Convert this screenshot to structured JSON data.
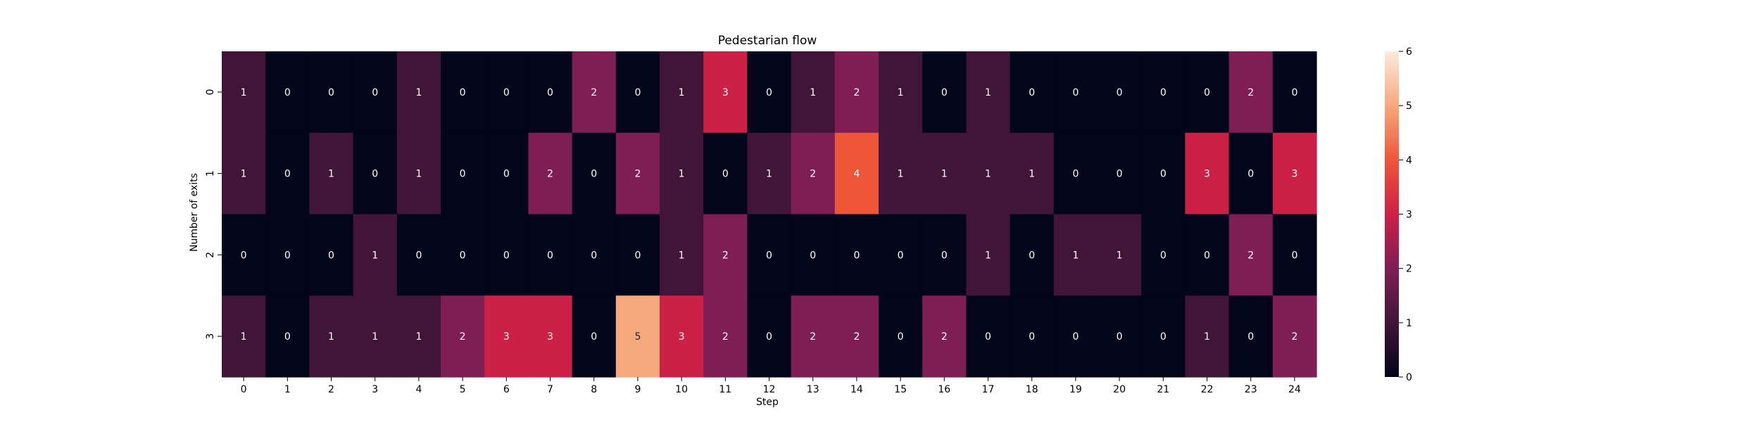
{
  "chart_data": {
    "type": "heatmap",
    "title": "Pedestarian flow",
    "xlabel": "Step",
    "ylabel": "Number of exits",
    "x_categories": [
      "0",
      "1",
      "2",
      "3",
      "4",
      "5",
      "6",
      "7",
      "8",
      "9",
      "10",
      "11",
      "12",
      "13",
      "14",
      "15",
      "16",
      "17",
      "18",
      "19",
      "20",
      "21",
      "22",
      "23",
      "24"
    ],
    "y_categories": [
      "0",
      "1",
      "2",
      "3"
    ],
    "values": [
      [
        1,
        0,
        0,
        0,
        1,
        0,
        0,
        0,
        2,
        0,
        1,
        3,
        0,
        1,
        2,
        1,
        0,
        1,
        0,
        0,
        0,
        0,
        0,
        2,
        0
      ],
      [
        1,
        0,
        1,
        0,
        1,
        0,
        0,
        2,
        0,
        2,
        1,
        0,
        1,
        2,
        4,
        1,
        1,
        1,
        1,
        0,
        0,
        0,
        3,
        0,
        3
      ],
      [
        0,
        0,
        0,
        1,
        0,
        0,
        0,
        0,
        0,
        0,
        1,
        2,
        0,
        0,
        0,
        0,
        0,
        1,
        0,
        1,
        1,
        0,
        0,
        2,
        0
      ],
      [
        1,
        0,
        1,
        1,
        1,
        2,
        3,
        3,
        0,
        5,
        3,
        2,
        0,
        2,
        2,
        0,
        2,
        0,
        0,
        0,
        0,
        0,
        1,
        0,
        2
      ]
    ],
    "colorbar": {
      "min": 0,
      "max": 6,
      "ticks": [
        "0",
        "1",
        "2",
        "3",
        "4",
        "5",
        "6"
      ]
    },
    "colormap": "rocket",
    "annotations": true,
    "grid": false
  }
}
